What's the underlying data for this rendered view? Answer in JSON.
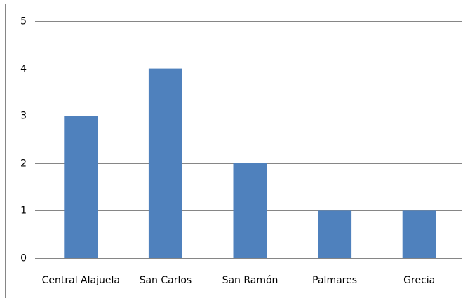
{
  "chart_data": {
    "type": "bar",
    "categories": [
      "Central Alajuela",
      "San Carlos",
      "San Ramón",
      "Palmares",
      "Grecia"
    ],
    "values": [
      3,
      4,
      2,
      1,
      1
    ],
    "color": "#4f81bd",
    "ylim": [
      0,
      5
    ],
    "yticks": [
      0,
      1,
      2,
      3,
      4,
      5
    ],
    "grid": true
  }
}
